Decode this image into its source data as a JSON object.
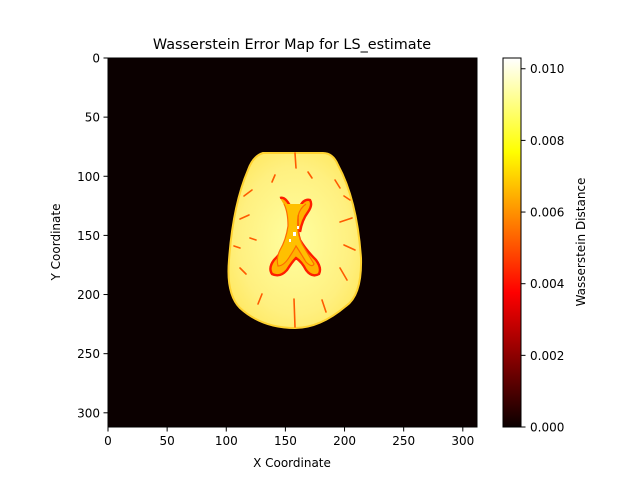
{
  "chart_data": {
    "type": "heatmap",
    "title": "Wasserstein Error Map for LS_estimate",
    "xlabel": "X Coordinate",
    "ylabel": "Y Coordinate",
    "xlim": [
      0,
      312
    ],
    "ylim": [
      312,
      0
    ],
    "x_ticks": [
      0,
      50,
      100,
      150,
      200,
      250,
      300
    ],
    "y_ticks": [
      0,
      50,
      100,
      150,
      200,
      250,
      300
    ],
    "colormap": "hot",
    "colormap_stops": [
      "#0b0000",
      "#ff0000",
      "#ffff00",
      "#ffffff"
    ],
    "colorbar": {
      "label": "Wasserstein Distance",
      "min": 0.0,
      "max": 0.0103,
      "ticks": [
        "0.000",
        "0.002",
        "0.004",
        "0.006",
        "0.008",
        "0.010"
      ],
      "tick_values": [
        0.0,
        0.002,
        0.004,
        0.006,
        0.008,
        0.01
      ]
    },
    "regions": [
      {
        "name": "background",
        "value": 0.0
      },
      {
        "name": "brain tissue",
        "value": 0.0095,
        "x_range": [
          103,
          215
        ],
        "y_range": [
          80,
          228
        ],
        "center": [
          159,
          154
        ]
      },
      {
        "name": "ventricle boundary",
        "value": 0.003
      },
      {
        "name": "ventricle interior",
        "value": 0.0072
      },
      {
        "name": "sulci streaks",
        "value": 0.005
      }
    ],
    "grid": false
  }
}
